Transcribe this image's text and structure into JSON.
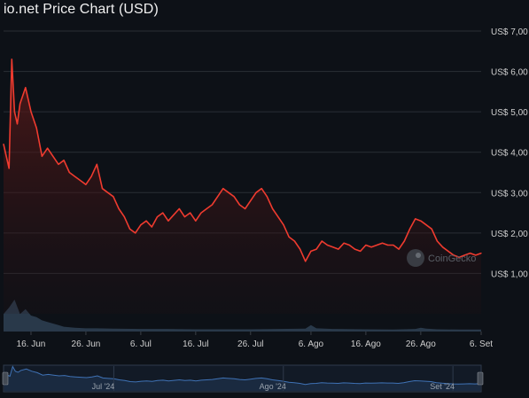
{
  "page": {
    "title": "io.net Price Chart (USD)"
  },
  "colors": {
    "background": "#0d1117",
    "grid": "#2a2f36",
    "price_line": "#ef3b2f",
    "price_fill_top": "#5a1a1a",
    "volume_fill": "#2f4153",
    "navigator_line": "#3f72b5",
    "navigator_fill": "#1c2c44",
    "axis_text": "#cfcfcf"
  },
  "watermark": {
    "text": "CoinGecko"
  },
  "chart_data": {
    "type": "line",
    "title": "io.net Price Chart (USD)",
    "xlabel": "",
    "ylabel": "",
    "ylim": [
      0,
      7
    ],
    "grid": true,
    "y_axis_side": "right",
    "y_ticks": [
      {
        "value": 1,
        "label": "US$ 1,00"
      },
      {
        "value": 2,
        "label": "US$ 2,00"
      },
      {
        "value": 3,
        "label": "US$ 3,00"
      },
      {
        "value": 4,
        "label": "US$ 4,00"
      },
      {
        "value": 5,
        "label": "US$ 5,00"
      },
      {
        "value": 6,
        "label": "US$ 6,00"
      },
      {
        "value": 7,
        "label": "US$ 7,00"
      }
    ],
    "x_ticks": [
      {
        "date": "2024-06-16",
        "label": "16. Jun"
      },
      {
        "date": "2024-06-26",
        "label": "26. Jun"
      },
      {
        "date": "2024-07-06",
        "label": "6. Jul"
      },
      {
        "date": "2024-07-16",
        "label": "16. Jul"
      },
      {
        "date": "2024-07-26",
        "label": "26. Jul"
      },
      {
        "date": "2024-08-06",
        "label": "6. Ago"
      },
      {
        "date": "2024-08-16",
        "label": "16. Ago"
      },
      {
        "date": "2024-08-26",
        "label": "26. Ago"
      },
      {
        "date": "2024-09-06",
        "label": "6. Set"
      }
    ],
    "x_range": [
      "2024-06-11",
      "2024-09-06"
    ],
    "navigator_labels": [
      {
        "date": "2024-07-01",
        "label": "Jul '24"
      },
      {
        "date": "2024-08-01",
        "label": "Ago '24"
      },
      {
        "date": "2024-09-01",
        "label": "Set '24"
      }
    ],
    "price": {
      "x": [
        "2024-06-11",
        "2024-06-12",
        "2024-06-12T12:00",
        "2024-06-13",
        "2024-06-13T12:00",
        "2024-06-14",
        "2024-06-15",
        "2024-06-16",
        "2024-06-17",
        "2024-06-18",
        "2024-06-19",
        "2024-06-20",
        "2024-06-21",
        "2024-06-22",
        "2024-06-23",
        "2024-06-24",
        "2024-06-25",
        "2024-06-26",
        "2024-06-27",
        "2024-06-28",
        "2024-06-29",
        "2024-06-30",
        "2024-07-01",
        "2024-07-02",
        "2024-07-03",
        "2024-07-04",
        "2024-07-05",
        "2024-07-06",
        "2024-07-07",
        "2024-07-08",
        "2024-07-09",
        "2024-07-10",
        "2024-07-11",
        "2024-07-12",
        "2024-07-13",
        "2024-07-14",
        "2024-07-15",
        "2024-07-16",
        "2024-07-17",
        "2024-07-18",
        "2024-07-19",
        "2024-07-20",
        "2024-07-21",
        "2024-07-22",
        "2024-07-23",
        "2024-07-24",
        "2024-07-25",
        "2024-07-26",
        "2024-07-27",
        "2024-07-28",
        "2024-07-29",
        "2024-07-30",
        "2024-07-31",
        "2024-08-01",
        "2024-08-02",
        "2024-08-03",
        "2024-08-04",
        "2024-08-05",
        "2024-08-06",
        "2024-08-07",
        "2024-08-08",
        "2024-08-09",
        "2024-08-10",
        "2024-08-11",
        "2024-08-12",
        "2024-08-13",
        "2024-08-14",
        "2024-08-15",
        "2024-08-16",
        "2024-08-17",
        "2024-08-18",
        "2024-08-19",
        "2024-08-20",
        "2024-08-21",
        "2024-08-22",
        "2024-08-23",
        "2024-08-24",
        "2024-08-25",
        "2024-08-26",
        "2024-08-27",
        "2024-08-28",
        "2024-08-29",
        "2024-08-30",
        "2024-08-31",
        "2024-09-01",
        "2024-09-02",
        "2024-09-03",
        "2024-09-04",
        "2024-09-05",
        "2024-09-06"
      ],
      "y": [
        4.2,
        3.6,
        6.3,
        5.0,
        4.7,
        5.2,
        5.6,
        5.0,
        4.6,
        3.9,
        4.1,
        3.9,
        3.7,
        3.8,
        3.5,
        3.4,
        3.3,
        3.2,
        3.4,
        3.7,
        3.1,
        3.0,
        2.9,
        2.6,
        2.4,
        2.1,
        2.0,
        2.2,
        2.3,
        2.15,
        2.4,
        2.5,
        2.3,
        2.45,
        2.6,
        2.4,
        2.5,
        2.3,
        2.5,
        2.6,
        2.7,
        2.9,
        3.1,
        3.0,
        2.9,
        2.7,
        2.6,
        2.8,
        3.0,
        3.1,
        2.9,
        2.6,
        2.4,
        2.2,
        1.9,
        1.8,
        1.6,
        1.3,
        1.55,
        1.6,
        1.8,
        1.7,
        1.65,
        1.6,
        1.75,
        1.7,
        1.6,
        1.55,
        1.7,
        1.65,
        1.7,
        1.75,
        1.7,
        1.7,
        1.6,
        1.8,
        2.1,
        2.35,
        2.3,
        2.2,
        2.1,
        1.8,
        1.65,
        1.55,
        1.45,
        1.4,
        1.45,
        1.5,
        1.45,
        1.5
      ]
    },
    "volume_relative": {
      "x": [
        "2024-06-11",
        "2024-06-12",
        "2024-06-13",
        "2024-06-14",
        "2024-06-15",
        "2024-06-16",
        "2024-06-17",
        "2024-06-18",
        "2024-06-19",
        "2024-06-20",
        "2024-06-21",
        "2024-06-22",
        "2024-06-24",
        "2024-06-26",
        "2024-06-28",
        "2024-07-01",
        "2024-07-06",
        "2024-07-11",
        "2024-07-16",
        "2024-07-21",
        "2024-07-26",
        "2024-07-31",
        "2024-08-05",
        "2024-08-06",
        "2024-08-07",
        "2024-08-10",
        "2024-08-16",
        "2024-08-21",
        "2024-08-25",
        "2024-08-26",
        "2024-08-27",
        "2024-08-29",
        "2024-09-02",
        "2024-09-06"
      ],
      "y": [
        0.55,
        0.75,
        1.0,
        0.55,
        0.7,
        0.5,
        0.45,
        0.35,
        0.3,
        0.25,
        0.2,
        0.15,
        0.12,
        0.1,
        0.1,
        0.09,
        0.08,
        0.08,
        0.07,
        0.07,
        0.07,
        0.08,
        0.09,
        0.2,
        0.1,
        0.08,
        0.07,
        0.06,
        0.08,
        0.12,
        0.09,
        0.07,
        0.06,
        0.06
      ]
    }
  }
}
